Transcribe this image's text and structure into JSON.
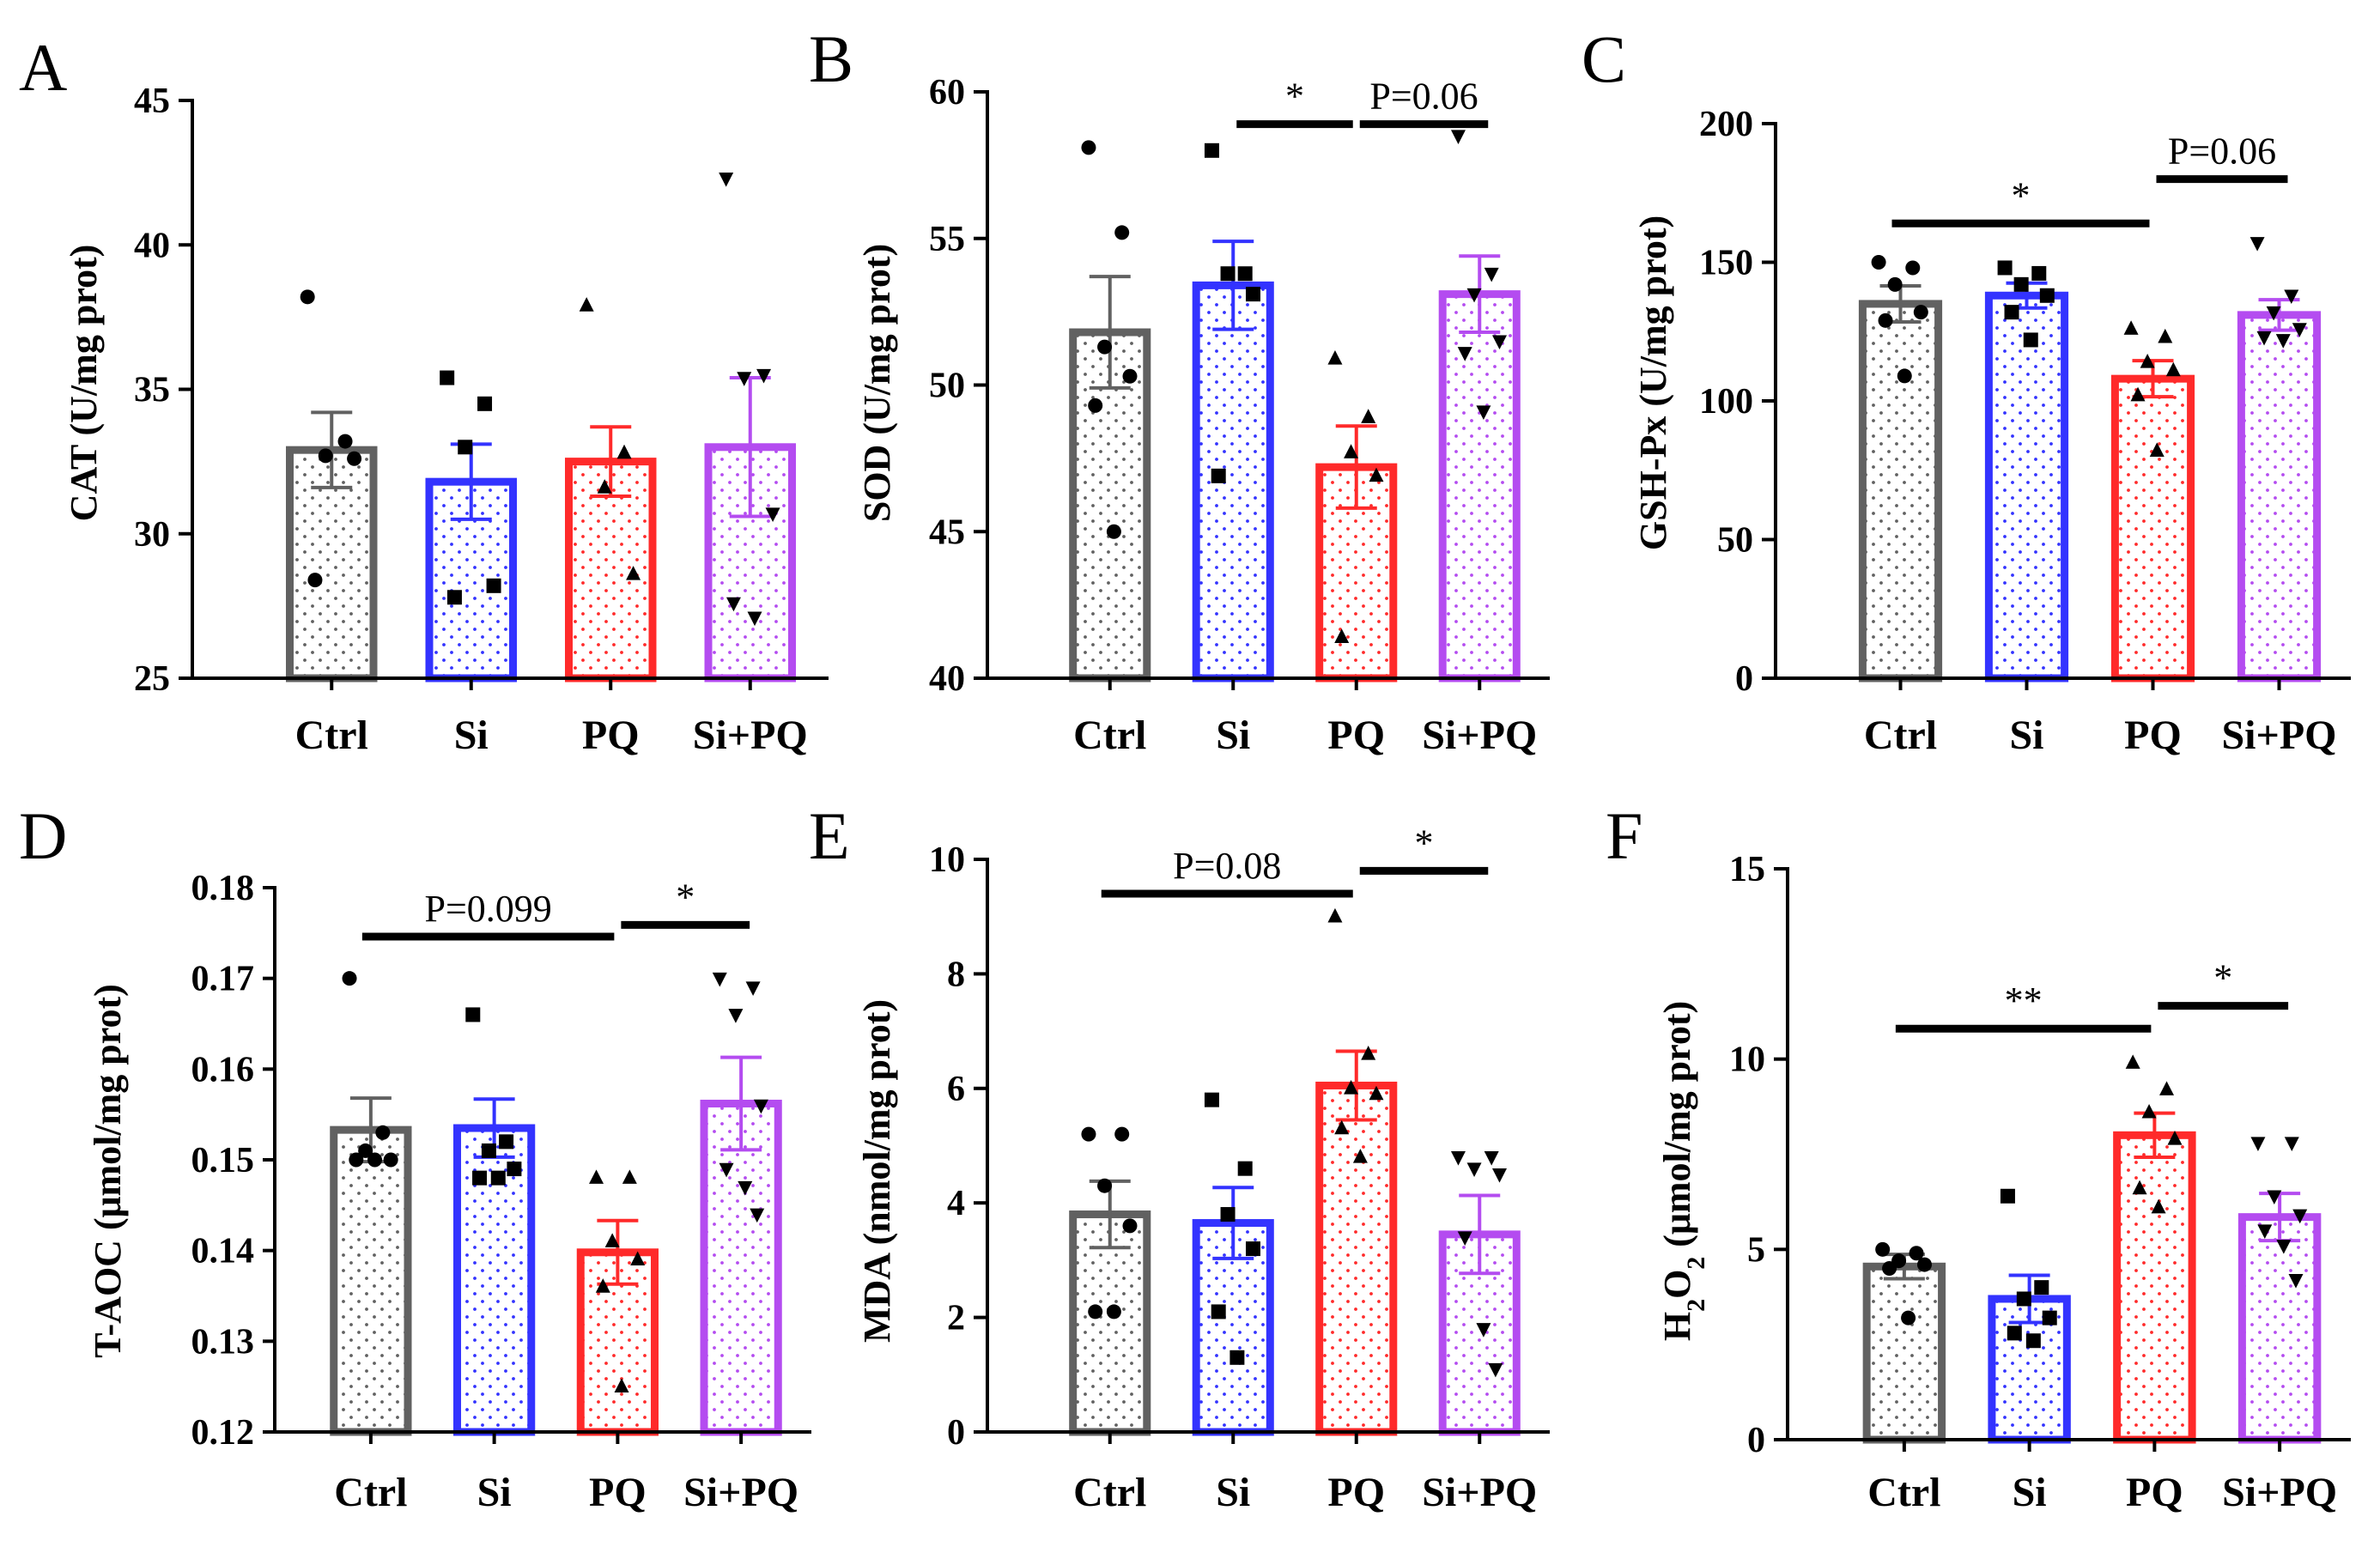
{
  "figure": {
    "colors": {
      "Ctrl": "#616161",
      "Si": "#3333ff",
      "PQ": "#ff2a2a",
      "Si+PQ": "#b44cf0"
    },
    "marker_shapes": {
      "Ctrl": "circle",
      "Si": "square",
      "PQ": "triangle-up",
      "Si+PQ": "triangle-down"
    }
  },
  "chart_data": [
    {
      "panel": "A",
      "type": "bar",
      "categories": [
        "Ctrl",
        "Si",
        "PQ",
        "Si+PQ"
      ],
      "values": [
        32.9,
        31.8,
        32.5,
        33.0
      ],
      "sem": [
        1.3,
        1.3,
        1.2,
        2.4
      ],
      "points": [
        [
          38.2,
          33.2,
          32.7,
          32.6,
          28.4
        ],
        [
          35.4,
          34.5,
          33.0,
          28.2,
          27.8
        ],
        [
          37.9,
          32.8,
          31.6,
          28.6
        ],
        [
          42.3,
          35.5,
          35.4,
          30.7,
          27.6,
          27.1
        ]
      ],
      "ylabel": "CAT (U/mg prot)",
      "ylim": [
        25,
        45
      ],
      "yticks": [
        25,
        30,
        35,
        40,
        45
      ],
      "yticklabels": [
        "25",
        "30",
        "35",
        "40",
        "45"
      ],
      "brackets": []
    },
    {
      "panel": "B",
      "type": "bar",
      "categories": [
        "Ctrl",
        "Si",
        "PQ",
        "Si+PQ"
      ],
      "values": [
        51.8,
        53.4,
        47.2,
        53.1
      ],
      "sem": [
        1.9,
        1.5,
        1.4,
        1.3
      ],
      "points": [
        [
          58.1,
          55.2,
          51.3,
          50.3,
          49.3,
          45.0
        ],
        [
          58.0,
          53.8,
          53.8,
          53.1,
          46.9
        ],
        [
          50.9,
          48.9,
          47.7,
          46.9,
          41.4
        ],
        [
          58.5,
          53.8,
          53.1,
          51.5,
          51.1,
          49.1
        ]
      ],
      "ylabel": "SOD (U/mg prot)",
      "ylim": [
        40,
        60
      ],
      "yticks": [
        40,
        45,
        50,
        55,
        60
      ],
      "yticklabels": [
        "40",
        "45",
        "50",
        "55",
        "60"
      ],
      "brackets": [
        {
          "from": 1,
          "to": 2,
          "label": "*",
          "y": 58.9
        },
        {
          "from": 2,
          "to": 3,
          "label": "P=0.06",
          "y": 58.9
        }
      ]
    },
    {
      "panel": "C",
      "type": "bar",
      "categories": [
        "Ctrl",
        "Si",
        "PQ",
        "Si+PQ"
      ],
      "values": [
        135,
        138,
        108,
        131
      ],
      "sem": [
        6.5,
        4.5,
        6.5,
        5.5
      ],
      "points": [
        [
          150,
          148,
          142,
          132,
          129,
          109
        ],
        [
          148,
          146,
          142,
          138,
          132,
          122
        ],
        [
          126,
          123,
          114,
          111,
          102,
          82
        ],
        [
          157,
          138,
          132,
          126,
          123,
          122
        ]
      ],
      "ylabel": "GSH-Px (U/mg prot)",
      "ylim": [
        0,
        200
      ],
      "yticks": [
        0,
        50,
        100,
        150,
        200
      ],
      "yticklabels": [
        "0",
        "50",
        "100",
        "150",
        "200"
      ],
      "brackets": [
        {
          "from": 0,
          "to": 2,
          "label": "*",
          "y": 164
        },
        {
          "from": 2,
          "to": 3,
          "label": "P=0.06",
          "y": 180
        }
      ]
    },
    {
      "panel": "D",
      "type": "bar",
      "categories": [
        "Ctrl",
        "Si",
        "PQ",
        "Si+PQ"
      ],
      "values": [
        0.1533,
        0.1535,
        0.1398,
        0.1562
      ],
      "sem": [
        0.0035,
        0.0032,
        0.0035,
        0.0051
      ],
      "points": [
        [
          0.17,
          0.153,
          0.151,
          0.15,
          0.15,
          0.15
        ],
        [
          0.166,
          0.152,
          0.151,
          0.149,
          0.148,
          0.148
        ],
        [
          0.148,
          0.148,
          0.141,
          0.139,
          0.136,
          0.125
        ],
        [
          0.17,
          0.169,
          0.166,
          0.156,
          0.149,
          0.147,
          0.144
        ]
      ],
      "ylabel": "T-AOC (μmol/mg prot)",
      "ylim": [
        0.12,
        0.18
      ],
      "yticks": [
        0.12,
        0.13,
        0.14,
        0.15,
        0.16,
        0.17,
        0.18
      ],
      "yticklabels": [
        "0.12",
        "0.13",
        "0.14",
        "0.15",
        "0.16",
        "0.17",
        "0.18"
      ],
      "brackets": [
        {
          "from": 0,
          "to": 2,
          "label": "P=0.099",
          "y": 0.1746
        },
        {
          "from": 2,
          "to": 3,
          "label": "*",
          "y": 0.1759
        }
      ]
    },
    {
      "panel": "E",
      "type": "bar",
      "categories": [
        "Ctrl",
        "Si",
        "PQ",
        "Si+PQ"
      ],
      "values": [
        3.8,
        3.65,
        6.05,
        3.45
      ],
      "sem": [
        0.58,
        0.62,
        0.6,
        0.68
      ],
      "points": [
        [
          5.2,
          5.2,
          4.3,
          3.6,
          2.1,
          2.1
        ],
        [
          5.8,
          4.6,
          3.8,
          3.2,
          2.1,
          1.3
        ],
        [
          9.0,
          6.6,
          6.0,
          5.9,
          5.3,
          4.8
        ],
        [
          4.8,
          4.8,
          4.6,
          4.5,
          3.4,
          1.8,
          1.1
        ]
      ],
      "ylabel": "MDA (nmol/mg prot)",
      "ylim": [
        0,
        10
      ],
      "yticks": [
        0,
        2,
        4,
        6,
        8,
        10
      ],
      "yticklabels": [
        "0",
        "2",
        "4",
        "6",
        "8",
        "10"
      ],
      "brackets": [
        {
          "from": 0,
          "to": 2,
          "label": "P=0.08",
          "y": 9.4
        },
        {
          "from": 2,
          "to": 3,
          "label": "*",
          "y": 9.8
        }
      ]
    },
    {
      "panel": "F",
      "type": "bar",
      "categories": [
        "Ctrl",
        "Si",
        "PQ",
        "Si+PQ"
      ],
      "values": [
        4.55,
        3.7,
        8.0,
        5.85
      ],
      "sem": [
        0.32,
        0.62,
        0.58,
        0.62
      ],
      "points": [
        [
          5.0,
          4.9,
          4.7,
          4.6,
          4.5,
          3.2
        ],
        [
          6.4,
          4.0,
          3.7,
          3.2,
          2.8,
          2.6
        ],
        [
          9.9,
          9.2,
          8.6,
          7.9,
          6.6,
          6.1
        ],
        [
          7.8,
          7.8,
          6.4,
          5.9,
          5.5,
          5.1,
          4.2
        ]
      ],
      "ylabel": "H2O2 (μmol/mg prot)",
      "ylim": [
        0,
        15
      ],
      "yticks": [
        0,
        5,
        10,
        15
      ],
      "yticklabels": [
        "0",
        "5",
        "10",
        "15"
      ],
      "brackets": [
        {
          "from": 0,
          "to": 2,
          "label": "**",
          "y": 10.8
        },
        {
          "from": 2,
          "to": 3,
          "label": "*",
          "y": 11.4
        }
      ]
    }
  ]
}
